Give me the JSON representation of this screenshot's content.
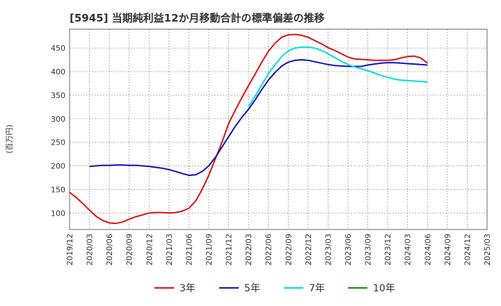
{
  "chart_data": {
    "type": "line",
    "title": "[5945]  当期純利益12か月移動合計の標準偏差の推移",
    "ylabel": "(百万円)",
    "xlabel": "",
    "ylim": [
      65,
      490
    ],
    "yticks": [
      100,
      150,
      200,
      250,
      300,
      350,
      400,
      450
    ],
    "grid": true,
    "legend_position": "bottom",
    "x_start": "2019-12",
    "x_ticks": [
      "2019/12",
      "2020/03",
      "2020/06",
      "2020/09",
      "2020/12",
      "2021/03",
      "2021/06",
      "2021/09",
      "2021/12",
      "2022/03",
      "2022/06",
      "2022/09",
      "2022/12",
      "2023/03",
      "2023/06",
      "2023/09",
      "2023/12",
      "2024/03",
      "2024/06",
      "2024/09",
      "2024/12",
      "2025/03"
    ],
    "series": [
      {
        "name": "3年",
        "color": "#dd1111",
        "points": [
          [
            0,
            144
          ],
          [
            1,
            133
          ],
          [
            2,
            120
          ],
          [
            3,
            106
          ],
          [
            4,
            93
          ],
          [
            5,
            84
          ],
          [
            6,
            79
          ],
          [
            7,
            78
          ],
          [
            8,
            81
          ],
          [
            9,
            87
          ],
          [
            10,
            92
          ],
          [
            11,
            96
          ],
          [
            12,
            100
          ],
          [
            13,
            101
          ],
          [
            14,
            101
          ],
          [
            15,
            100
          ],
          [
            16,
            101
          ],
          [
            17,
            104
          ],
          [
            18,
            110
          ],
          [
            19,
            125
          ],
          [
            20,
            150
          ],
          [
            21,
            180
          ],
          [
            22,
            215
          ],
          [
            23,
            250
          ],
          [
            24,
            290
          ],
          [
            25,
            318
          ],
          [
            26,
            345
          ],
          [
            27,
            370
          ],
          [
            28,
            395
          ],
          [
            29,
            420
          ],
          [
            30,
            443
          ],
          [
            31,
            460
          ],
          [
            32,
            473
          ],
          [
            33,
            478
          ],
          [
            34,
            479
          ],
          [
            35,
            477
          ],
          [
            36,
            473
          ],
          [
            37,
            466
          ],
          [
            38,
            459
          ],
          [
            39,
            451
          ],
          [
            40,
            445
          ],
          [
            41,
            438
          ],
          [
            42,
            431
          ],
          [
            43,
            427
          ],
          [
            44,
            426
          ],
          [
            45,
            425
          ],
          [
            46,
            424
          ],
          [
            47,
            424
          ],
          [
            48,
            424
          ],
          [
            49,
            425
          ],
          [
            50,
            429
          ],
          [
            51,
            432
          ],
          [
            52,
            433
          ],
          [
            53,
            429
          ],
          [
            54,
            418
          ]
        ]
      },
      {
        "name": "5年",
        "color": "#1111bb",
        "points": [
          [
            3,
            199
          ],
          [
            4,
            200
          ],
          [
            5,
            201
          ],
          [
            6,
            201
          ],
          [
            7,
            202
          ],
          [
            8,
            202
          ],
          [
            9,
            201
          ],
          [
            10,
            201
          ],
          [
            11,
            200
          ],
          [
            12,
            199
          ],
          [
            13,
            197
          ],
          [
            14,
            195
          ],
          [
            15,
            192
          ],
          [
            16,
            188
          ],
          [
            17,
            184
          ],
          [
            18,
            180
          ],
          [
            19,
            181
          ],
          [
            20,
            188
          ],
          [
            21,
            200
          ],
          [
            22,
            218
          ],
          [
            23,
            240
          ],
          [
            24,
            262
          ],
          [
            25,
            284
          ],
          [
            26,
            303
          ],
          [
            27,
            320
          ],
          [
            28,
            340
          ],
          [
            29,
            362
          ],
          [
            30,
            382
          ],
          [
            31,
            398
          ],
          [
            32,
            412
          ],
          [
            33,
            420
          ],
          [
            34,
            424
          ],
          [
            35,
            425
          ],
          [
            36,
            424
          ],
          [
            37,
            421
          ],
          [
            38,
            418
          ],
          [
            39,
            415
          ],
          [
            40,
            413
          ],
          [
            41,
            412
          ],
          [
            42,
            411
          ],
          [
            43,
            411
          ],
          [
            44,
            411
          ],
          [
            45,
            414
          ],
          [
            46,
            416
          ],
          [
            47,
            418
          ],
          [
            48,
            419
          ],
          [
            49,
            419
          ],
          [
            50,
            418
          ],
          [
            51,
            417
          ],
          [
            52,
            416
          ],
          [
            53,
            415
          ],
          [
            54,
            414
          ]
        ]
      },
      {
        "name": "7年",
        "color": "#00dddd",
        "points": [
          [
            27,
            326
          ],
          [
            28,
            348
          ],
          [
            29,
            372
          ],
          [
            30,
            396
          ],
          [
            31,
            414
          ],
          [
            32,
            432
          ],
          [
            33,
            444
          ],
          [
            34,
            450
          ],
          [
            35,
            452
          ],
          [
            36,
            452
          ],
          [
            37,
            450
          ],
          [
            38,
            445
          ],
          [
            39,
            438
          ],
          [
            40,
            430
          ],
          [
            41,
            422
          ],
          [
            42,
            415
          ],
          [
            43,
            410
          ],
          [
            44,
            406
          ],
          [
            45,
            402
          ],
          [
            46,
            397
          ],
          [
            47,
            392
          ],
          [
            48,
            388
          ],
          [
            49,
            384
          ],
          [
            50,
            382
          ],
          [
            51,
            381
          ],
          [
            52,
            380
          ],
          [
            53,
            379
          ],
          [
            54,
            378
          ]
        ]
      },
      {
        "name": "10年",
        "color": "#118811",
        "points": []
      }
    ]
  }
}
